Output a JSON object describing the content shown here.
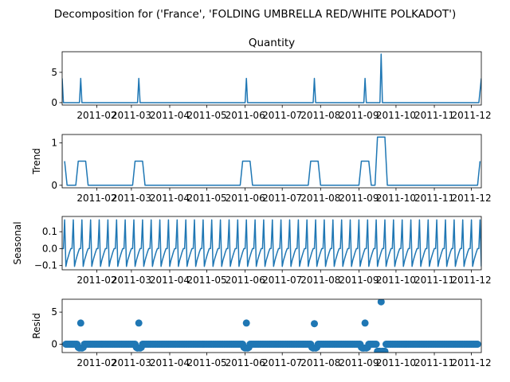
{
  "figure": {
    "suptitle": "Decomposition for ('France', 'FOLDING UMBRELLA RED/WHITE POLKADOT')",
    "line_color": "#1f77b4"
  },
  "chart_data": [
    {
      "type": "line",
      "title": "Quantity",
      "ylabel": "",
      "xlim": [
        "2011-01-04",
        "2011-12-09"
      ],
      "x_tick_labels": [
        "2011-02",
        "2011-03",
        "2011-04",
        "2011-05",
        "2011-06",
        "2011-07",
        "2011-08",
        "2011-09",
        "2011-10",
        "2011-11",
        "2011-12"
      ],
      "ylim": [
        -0.4,
        8.4
      ],
      "y_ticks": [
        0,
        5
      ],
      "y_tick_labels": [
        "0",
        "5"
      ],
      "x": [
        "2011-01-04",
        "2011-01-05",
        "2011-01-18",
        "2011-01-19",
        "2011-01-20",
        "2011-03-06",
        "2011-03-07",
        "2011-03-08",
        "2011-06-01",
        "2011-06-02",
        "2011-06-03",
        "2011-07-26",
        "2011-07-27",
        "2011-07-28",
        "2011-09-05",
        "2011-09-06",
        "2011-09-07",
        "2011-09-18",
        "2011-09-19",
        "2011-09-20",
        "2011-12-07",
        "2011-12-09"
      ],
      "values": [
        4,
        0,
        0,
        4,
        0,
        0,
        4,
        0,
        0,
        4,
        0,
        0,
        4,
        0,
        0,
        4,
        0,
        0,
        8,
        0,
        0,
        4
      ]
    },
    {
      "type": "line",
      "title": "",
      "ylabel": "Trend",
      "xlim": [
        "2011-01-04",
        "2011-12-09"
      ],
      "x_tick_labels": [
        "2011-02",
        "2011-03",
        "2011-04",
        "2011-05",
        "2011-06",
        "2011-07",
        "2011-08",
        "2011-09",
        "2011-10",
        "2011-11",
        "2011-12"
      ],
      "ylim": [
        -0.06,
        1.2
      ],
      "y_ticks": [
        0,
        1
      ],
      "y_tick_labels": [
        "0",
        "1"
      ],
      "x": [
        "2011-01-06",
        "2011-01-08",
        "2011-01-15",
        "2011-01-17",
        "2011-01-23",
        "2011-01-25",
        "2011-03-02",
        "2011-03-04",
        "2011-03-10",
        "2011-03-12",
        "2011-05-28",
        "2011-05-30",
        "2011-06-05",
        "2011-06-07",
        "2011-07-22",
        "2011-07-24",
        "2011-07-30",
        "2011-08-01",
        "2011-09-01",
        "2011-09-03",
        "2011-09-09",
        "2011-09-11",
        "2011-09-14",
        "2011-09-16",
        "2011-09-22",
        "2011-09-24",
        "2011-12-06",
        "2011-12-08"
      ],
      "values": [
        0.57,
        0,
        0,
        0.57,
        0.57,
        0,
        0,
        0.57,
        0.57,
        0,
        0,
        0.57,
        0.57,
        0,
        0,
        0.57,
        0.57,
        0,
        0,
        0.57,
        0.57,
        0,
        0,
        1.14,
        1.14,
        0,
        0,
        0.57
      ]
    },
    {
      "type": "line",
      "title": "",
      "ylabel": "Seasonal",
      "xlim": [
        "2011-01-04",
        "2011-12-09"
      ],
      "x_tick_labels": [
        "2011-02",
        "2011-03",
        "2011-04",
        "2011-05",
        "2011-06",
        "2011-07",
        "2011-08",
        "2011-09",
        "2011-10",
        "2011-11",
        "2011-12"
      ],
      "ylim": [
        -0.125,
        0.19
      ],
      "y_ticks": [
        -0.1,
        0.0,
        0.1
      ],
      "y_tick_labels": [
        "−0.1",
        "0.0",
        "0.1"
      ],
      "period_days": 7,
      "start": "2011-01-04",
      "end": "2011-12-09",
      "weekly_pattern": [
        0.0,
        0.0,
        0.17,
        -0.105,
        -0.07,
        -0.045,
        -0.02
      ]
    },
    {
      "type": "scatter",
      "title": "",
      "ylabel": "Resid",
      "xlim": [
        "2011-01-04",
        "2011-12-09"
      ],
      "x_tick_labels": [
        "2011-02",
        "2011-03",
        "2011-04",
        "2011-05",
        "2011-06",
        "2011-07",
        "2011-08",
        "2011-09",
        "2011-10",
        "2011-11",
        "2011-12"
      ],
      "ylim": [
        -1.3,
        7.0
      ],
      "y_ticks": [
        0,
        5
      ],
      "y_tick_labels": [
        "0",
        "5"
      ],
      "baseline_start": "2011-01-07",
      "baseline_end": "2011-12-06",
      "baseline_value": 0.0,
      "outliers": [
        {
          "x": "2011-01-19",
          "y": 3.3
        },
        {
          "x": "2011-03-07",
          "y": 3.3
        },
        {
          "x": "2011-06-02",
          "y": 3.3
        },
        {
          "x": "2011-07-27",
          "y": 3.2
        },
        {
          "x": "2011-09-06",
          "y": 3.3
        },
        {
          "x": "2011-09-19",
          "y": 6.6
        },
        {
          "x": "2011-09-16",
          "y": -1.1
        },
        {
          "x": "2011-09-17",
          "y": -1.1
        },
        {
          "x": "2011-09-18",
          "y": -1.1
        },
        {
          "x": "2011-09-20",
          "y": -1.1
        },
        {
          "x": "2011-09-21",
          "y": -1.1
        },
        {
          "x": "2011-09-22",
          "y": -1.1
        }
      ],
      "dips": [
        {
          "x": "2011-01-17",
          "y": -0.5
        },
        {
          "x": "2011-01-18",
          "y": -0.6
        },
        {
          "x": "2011-01-20",
          "y": -0.6
        },
        {
          "x": "2011-01-21",
          "y": -0.5
        },
        {
          "x": "2011-03-05",
          "y": -0.5
        },
        {
          "x": "2011-03-06",
          "y": -0.6
        },
        {
          "x": "2011-03-08",
          "y": -0.6
        },
        {
          "x": "2011-03-09",
          "y": -0.5
        },
        {
          "x": "2011-05-31",
          "y": -0.5
        },
        {
          "x": "2011-06-01",
          "y": -0.6
        },
        {
          "x": "2011-06-03",
          "y": -0.6
        },
        {
          "x": "2011-06-04",
          "y": -0.5
        },
        {
          "x": "2011-07-25",
          "y": -0.5
        },
        {
          "x": "2011-07-26",
          "y": -0.6
        },
        {
          "x": "2011-07-28",
          "y": -0.6
        },
        {
          "x": "2011-07-29",
          "y": -0.5
        },
        {
          "x": "2011-09-03",
          "y": -0.5
        },
        {
          "x": "2011-09-04",
          "y": -0.6
        },
        {
          "x": "2011-09-05",
          "y": -0.6
        },
        {
          "x": "2011-09-07",
          "y": -0.6
        },
        {
          "x": "2011-09-08",
          "y": -0.5
        },
        {
          "x": "2011-01-06",
          "y": -0.5
        },
        {
          "x": "2011-12-07",
          "y": -0.5
        },
        {
          "x": "2011-12-08",
          "y": -0.6
        }
      ]
    }
  ]
}
